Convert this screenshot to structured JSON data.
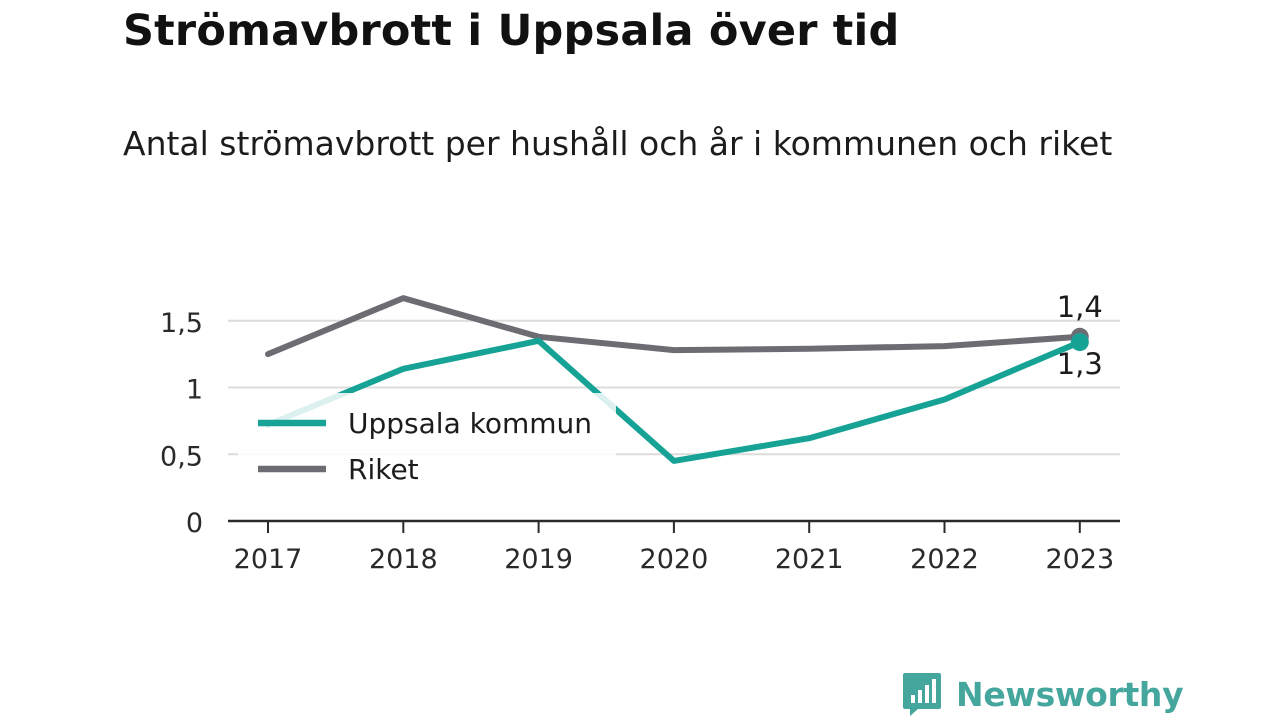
{
  "header": {
    "title": "Strömavbrott i Uppsala över tid",
    "subtitle": "Antal strömavbrott per hushåll och år i kommunen och riket"
  },
  "chart_data": {
    "type": "line",
    "title": "Strömavbrott i Uppsala över tid",
    "subtitle": "Antal strömavbrott per hushåll och år i kommunen och riket",
    "x": [
      "2017",
      "2018",
      "2019",
      "2020",
      "2021",
      "2022",
      "2023"
    ],
    "y_ticks": [
      0,
      0.5,
      1,
      1.5
    ],
    "y_tick_labels": [
      "0",
      "0,5",
      "1",
      "1,5"
    ],
    "ylim": [
      0,
      1.75
    ],
    "grid": true,
    "legend": "inside-left",
    "series": [
      {
        "name": "Uppsala kommun",
        "color": "#16a396",
        "values": [
          0.72,
          1.14,
          1.35,
          0.45,
          0.62,
          0.91,
          1.34
        ],
        "end_label": "1,3"
      },
      {
        "name": "Riket",
        "color": "#6d6c72",
        "values": [
          1.25,
          1.67,
          1.38,
          1.28,
          1.29,
          1.31,
          1.38
        ],
        "end_label": "1,4"
      }
    ]
  },
  "branding": {
    "logo_text": "Newsworthy",
    "icon": "newsworthy-chart-icon",
    "color": "#45a69d"
  }
}
